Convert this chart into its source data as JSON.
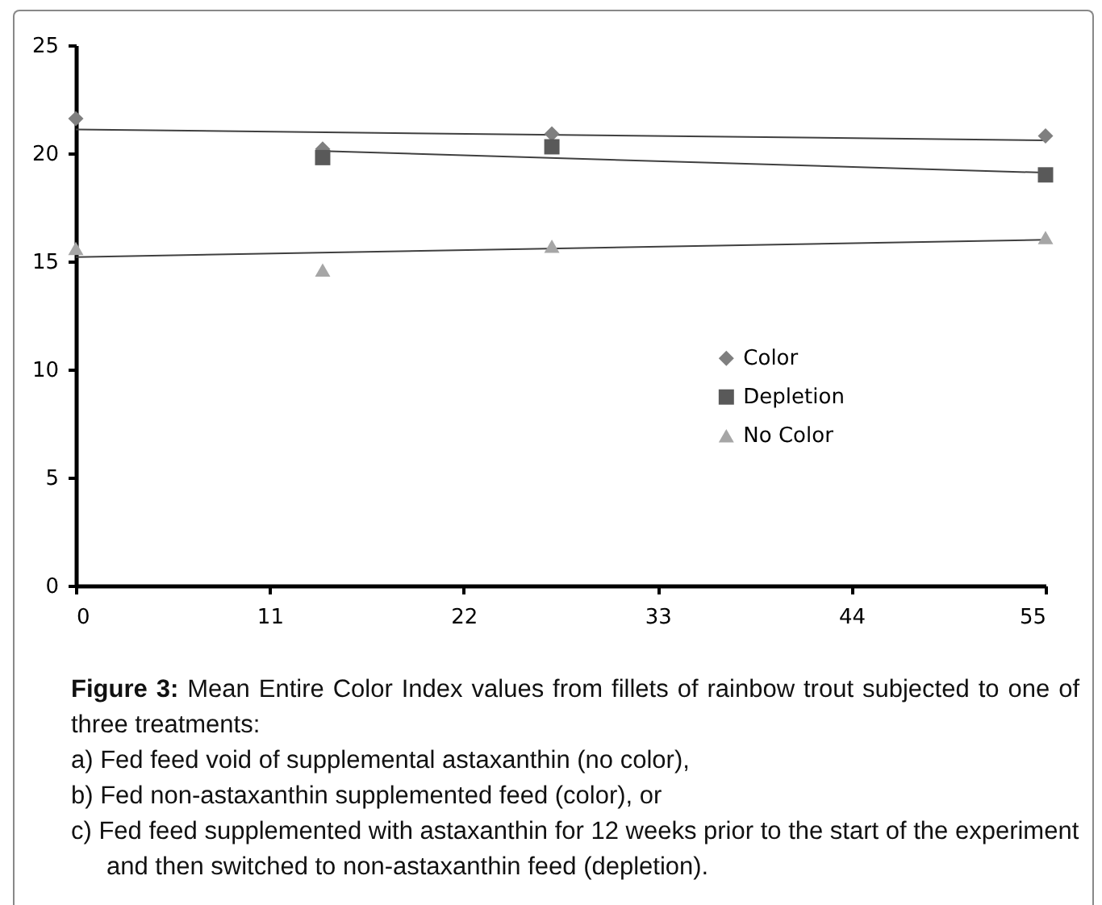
{
  "chart_data": {
    "type": "scatter",
    "xlim": [
      0,
      55
    ],
    "xticks": [
      0,
      11,
      22,
      33,
      44,
      55
    ],
    "ylim": [
      0,
      25
    ],
    "yticks": [
      0,
      5,
      10,
      15,
      20,
      25
    ],
    "grid": false,
    "legend": "right",
    "series": [
      {
        "name": "Color",
        "color": "#7f7f7f",
        "marker": "diamond",
        "x": [
          0,
          14,
          27,
          55
        ],
        "values": [
          21.6,
          20.2,
          20.9,
          20.8
        ]
      },
      {
        "name": "Depletion",
        "color": "#595959",
        "marker": "square",
        "x": [
          14,
          27,
          55
        ],
        "values": [
          19.8,
          20.3,
          19.0
        ]
      },
      {
        "name": "No Color",
        "color": "#a6a6a6",
        "marker": "triangle",
        "x": [
          0,
          14,
          27,
          55
        ],
        "values": [
          15.6,
          14.6,
          15.7,
          16.1
        ]
      },
      {
        "type": "line",
        "color": "#404040",
        "x": [
          0,
          55
        ],
        "values": [
          21.1,
          20.6
        ]
      },
      {
        "type": "line",
        "color": "#404040",
        "x": [
          14,
          55
        ],
        "values": [
          20.1,
          19.1
        ]
      },
      {
        "type": "line",
        "color": "#404040",
        "x": [
          0,
          55
        ],
        "values": [
          15.2,
          16.0
        ]
      }
    ],
    "annotations": [
      "Figure 3: Mean Entire Color Index values from fillets of rainbow trout subjected to one of three treatments:",
      "a) Fed feed void of supplemental astaxanthin (no color),",
      "b) Fed non-astaxanthin supplemented feed (color), or",
      "c) Fed feed supplemented with astaxanthin for 12 weeks prior to the start of the experiment and then switched to non-astaxanthin feed (depletion)."
    ]
  }
}
